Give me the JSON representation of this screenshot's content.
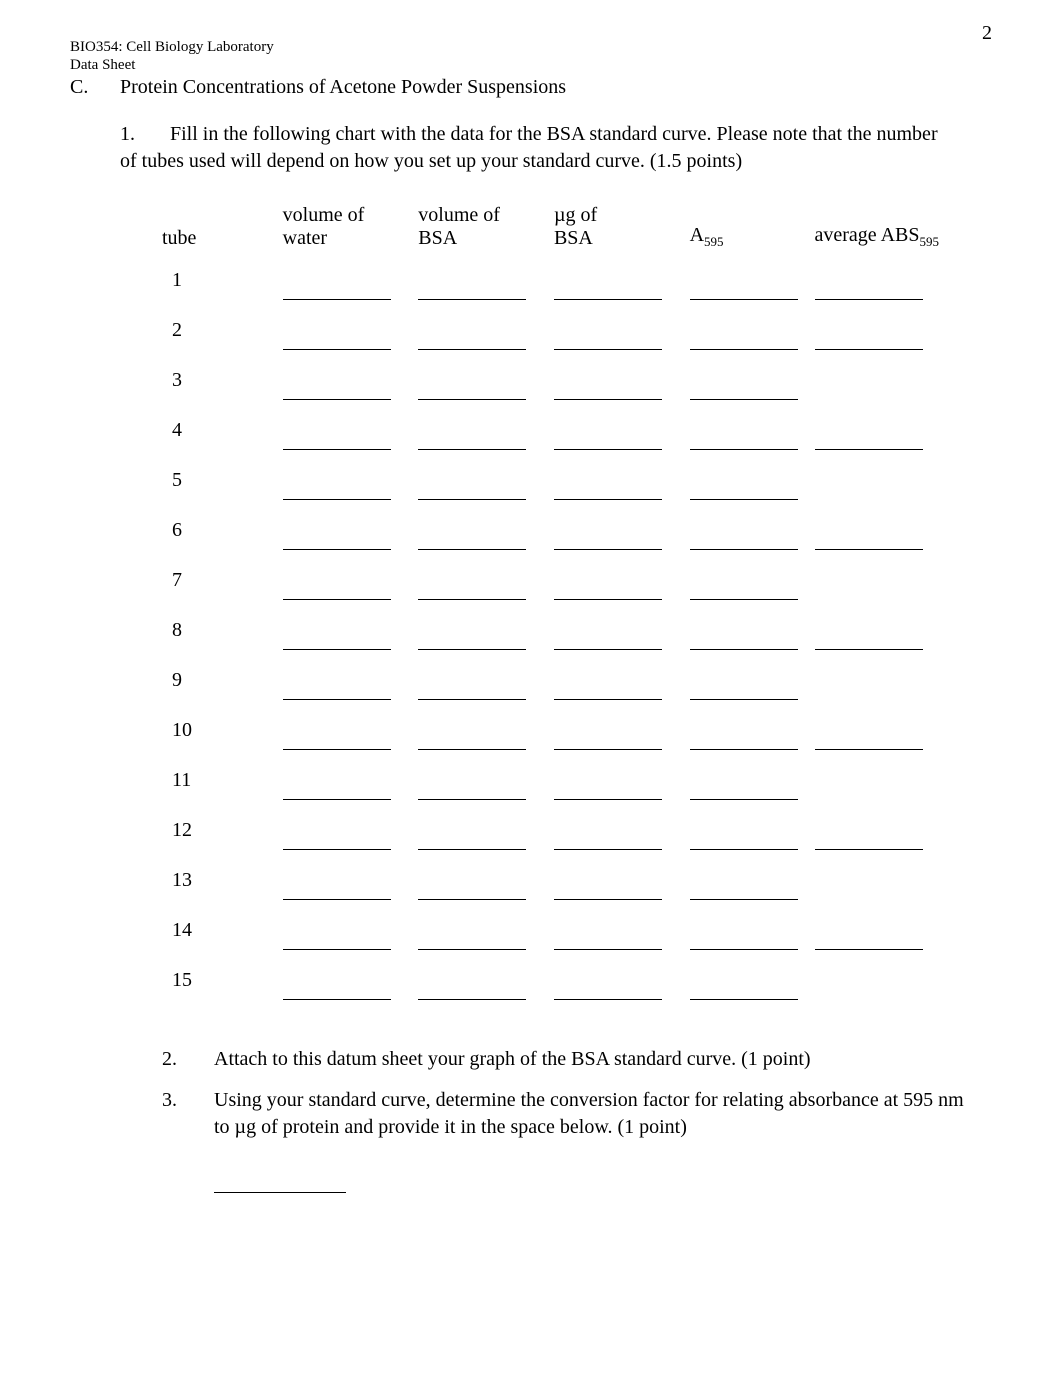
{
  "page_number": "2",
  "header": {
    "course": "BIO354: Cell Biology Laboratory",
    "sheet": "Data Sheet"
  },
  "section": {
    "label": "C.",
    "title": "Protein Concentrations of Acetone Powder Suspensions"
  },
  "q1": {
    "num": "1.",
    "text_a": "Fill in the following chart with the data for the BSA standard curve. Please note that the number",
    "text_b": "of tubes used will depend on how you set up your standard curve. (1.5 points)"
  },
  "table": {
    "headers": {
      "tube": "tube",
      "vol_water_a": "volume of",
      "vol_water_b": "water",
      "vol_bsa_a": "volume of",
      "vol_bsa_b": "BSA",
      "ug_a": "µg of",
      "ug_b": "BSA",
      "a595": "A",
      "a595_sub": "595",
      "avg": "average ABS",
      "avg_sub": "595"
    },
    "tubes": [
      "1",
      "2",
      "3",
      "4",
      "5",
      "6",
      "7",
      "8",
      "9",
      "10",
      "11",
      "12",
      "13",
      "14",
      "15"
    ],
    "avg_rows": [
      true,
      true,
      false,
      true,
      false,
      true,
      false,
      true,
      false,
      true,
      false,
      true,
      false,
      true,
      false
    ]
  },
  "q2": {
    "num": "2.",
    "text": "Attach to this datum sheet your graph of the BSA standard curve. (1 point)"
  },
  "q3": {
    "num": "3.",
    "text": "Using your standard curve, determine the conversion factor for relating absorbance at 595 nm to µg of protein and provide it in the space below. (1 point)"
  }
}
